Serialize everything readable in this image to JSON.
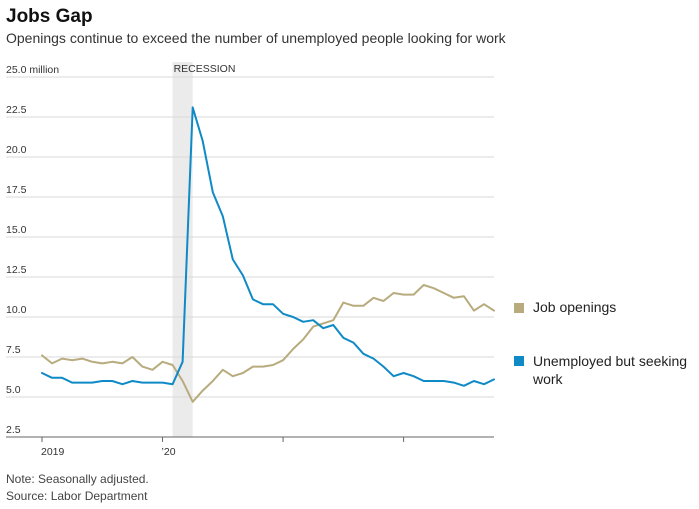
{
  "title": "Jobs Gap",
  "subtitle": "Openings continue to exceed the number of unemployed people looking for work",
  "note": "Note: Seasonally adjusted.",
  "source": "Source: Labor Department",
  "chart_data": {
    "type": "line",
    "title": "Jobs Gap",
    "subtitle": "Openings continue to exceed the number of unemployed people looking for work",
    "ylim": [
      2.5,
      25.0
    ],
    "y_ticks": [
      {
        "value": 25.0,
        "label": "25.0 million"
      },
      {
        "value": 22.5,
        "label": "22.5"
      },
      {
        "value": 20.0,
        "label": "20.0"
      },
      {
        "value": 17.5,
        "label": "17.5"
      },
      {
        "value": 15.0,
        "label": "15.0"
      },
      {
        "value": 12.5,
        "label": "12.5"
      },
      {
        "value": 10.0,
        "label": "10.0"
      },
      {
        "value": 7.5,
        "label": "7.5"
      },
      {
        "value": 5.0,
        "label": "5.0"
      },
      {
        "value": 2.5,
        "label": "2.5"
      }
    ],
    "x_ticks": [
      {
        "date": "2019-01",
        "label": "2019"
      },
      {
        "date": "2020-01",
        "label": "’20"
      },
      {
        "date": "2021-01",
        "label": ""
      },
      {
        "date": "2022-01",
        "label": ""
      }
    ],
    "xlim": [
      "2019-01",
      "2022-09"
    ],
    "grid": true,
    "legend_placement": "right",
    "recession": {
      "label": "RECESSION",
      "start": "2020-02",
      "end": "2020-04"
    },
    "series": [
      {
        "name": "Job openings",
        "color": "#b8ab7e",
        "points": [
          [
            "2019-01",
            7.6
          ],
          [
            "2019-02",
            7.1
          ],
          [
            "2019-03",
            7.4
          ],
          [
            "2019-04",
            7.3
          ],
          [
            "2019-05",
            7.4
          ],
          [
            "2019-06",
            7.2
          ],
          [
            "2019-07",
            7.1
          ],
          [
            "2019-08",
            7.2
          ],
          [
            "2019-09",
            7.1
          ],
          [
            "2019-10",
            7.5
          ],
          [
            "2019-11",
            6.9
          ],
          [
            "2019-12",
            6.7
          ],
          [
            "2020-01",
            7.2
          ],
          [
            "2020-02",
            7.0
          ],
          [
            "2020-03",
            6.0
          ],
          [
            "2020-04",
            4.7
          ],
          [
            "2020-05",
            5.4
          ],
          [
            "2020-06",
            6.0
          ],
          [
            "2020-07",
            6.7
          ],
          [
            "2020-08",
            6.3
          ],
          [
            "2020-09",
            6.5
          ],
          [
            "2020-10",
            6.9
          ],
          [
            "2020-11",
            6.9
          ],
          [
            "2020-12",
            7.0
          ],
          [
            "2021-01",
            7.3
          ],
          [
            "2021-02",
            8.0
          ],
          [
            "2021-03",
            8.6
          ],
          [
            "2021-04",
            9.4
          ],
          [
            "2021-05",
            9.6
          ],
          [
            "2021-06",
            9.8
          ],
          [
            "2021-07",
            10.9
          ],
          [
            "2021-08",
            10.7
          ],
          [
            "2021-09",
            10.7
          ],
          [
            "2021-10",
            11.2
          ],
          [
            "2021-11",
            11.0
          ],
          [
            "2021-12",
            11.5
          ],
          [
            "2022-01",
            11.4
          ],
          [
            "2022-02",
            11.4
          ],
          [
            "2022-03",
            12.0
          ],
          [
            "2022-04",
            11.8
          ],
          [
            "2022-05",
            11.5
          ],
          [
            "2022-06",
            11.2
          ],
          [
            "2022-07",
            11.3
          ],
          [
            "2022-08",
            10.4
          ],
          [
            "2022-09",
            10.8
          ],
          [
            "2022-10",
            10.4
          ]
        ]
      },
      {
        "name": "Unemployed but seeking work",
        "color": "#0f8ac6",
        "points": [
          [
            "2019-01",
            6.5
          ],
          [
            "2019-02",
            6.2
          ],
          [
            "2019-03",
            6.2
          ],
          [
            "2019-04",
            5.9
          ],
          [
            "2019-05",
            5.9
          ],
          [
            "2019-06",
            5.9
          ],
          [
            "2019-07",
            6.0
          ],
          [
            "2019-08",
            6.0
          ],
          [
            "2019-09",
            5.8
          ],
          [
            "2019-10",
            6.0
          ],
          [
            "2019-11",
            5.9
          ],
          [
            "2019-12",
            5.9
          ],
          [
            "2020-01",
            5.9
          ],
          [
            "2020-02",
            5.8
          ],
          [
            "2020-03",
            7.2
          ],
          [
            "2020-04",
            23.1
          ],
          [
            "2020-05",
            21.0
          ],
          [
            "2020-06",
            17.8
          ],
          [
            "2020-07",
            16.3
          ],
          [
            "2020-08",
            13.6
          ],
          [
            "2020-09",
            12.6
          ],
          [
            "2020-10",
            11.1
          ],
          [
            "2020-11",
            10.8
          ],
          [
            "2020-12",
            10.8
          ],
          [
            "2021-01",
            10.2
          ],
          [
            "2021-02",
            10.0
          ],
          [
            "2021-03",
            9.7
          ],
          [
            "2021-04",
            9.8
          ],
          [
            "2021-05",
            9.3
          ],
          [
            "2021-06",
            9.5
          ],
          [
            "2021-07",
            8.7
          ],
          [
            "2021-08",
            8.4
          ],
          [
            "2021-09",
            7.7
          ],
          [
            "2021-10",
            7.4
          ],
          [
            "2021-11",
            6.9
          ],
          [
            "2021-12",
            6.3
          ],
          [
            "2022-01",
            6.5
          ],
          [
            "2022-02",
            6.3
          ],
          [
            "2022-03",
            6.0
          ],
          [
            "2022-04",
            6.0
          ],
          [
            "2022-05",
            6.0
          ],
          [
            "2022-06",
            5.9
          ],
          [
            "2022-07",
            5.7
          ],
          [
            "2022-08",
            6.0
          ],
          [
            "2022-09",
            5.8
          ],
          [
            "2022-10",
            6.1
          ]
        ]
      }
    ]
  }
}
